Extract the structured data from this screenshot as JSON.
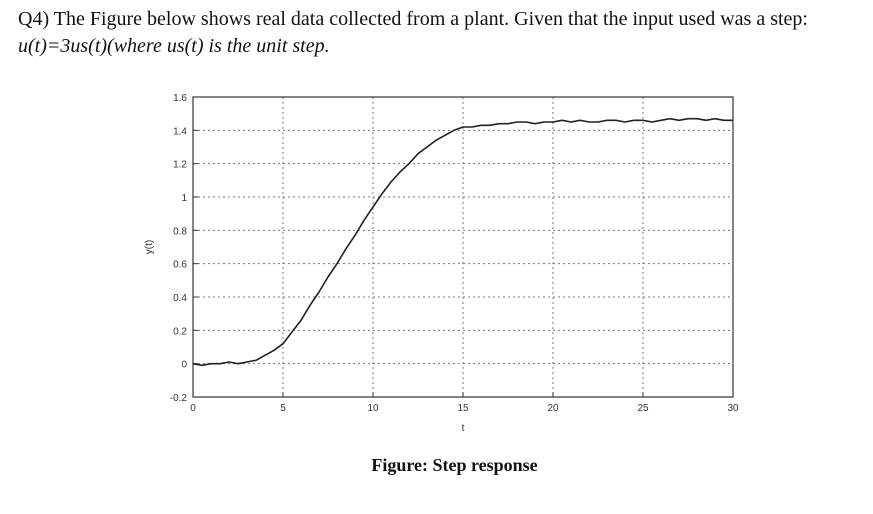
{
  "question": {
    "line1": "Q4) The Figure below shows real data collected from a plant. Given that the input used was a step:",
    "line2": "u(t)=3us(t)(where us(t) is the unit step."
  },
  "caption": "Figure: Step response",
  "chart_data": {
    "type": "line",
    "title": "",
    "xlabel": "t",
    "ylabel": "y(t)",
    "xlim": [
      0,
      30
    ],
    "ylim": [
      -0.2,
      1.6
    ],
    "xticks": [
      0,
      5,
      10,
      15,
      20,
      25,
      30
    ],
    "yticks": [
      -0.2,
      0,
      0.2,
      0.4,
      0.6,
      0.8,
      1,
      1.2,
      1.4,
      1.6
    ],
    "xtick_labels": [
      "0",
      "5",
      "10",
      "15",
      "20",
      "25",
      "30"
    ],
    "ytick_labels": [
      "-0.2",
      "0",
      "0.2",
      "0.4",
      "0.6",
      "0.8",
      "1",
      "1.2",
      "1.4",
      "1.6"
    ],
    "grid": true,
    "series": [
      {
        "x": [
          0,
          0.5,
          1,
          1.5,
          2,
          2.5,
          3,
          3.5,
          4,
          4.5,
          5,
          5.5,
          6,
          6.5,
          7,
          7.5,
          8,
          8.5,
          9,
          9.5,
          10,
          10.5,
          11,
          11.5,
          12,
          12.5,
          13,
          13.5,
          14,
          14.5,
          15,
          15.5,
          16,
          16.5,
          17,
          17.5,
          18,
          18.5,
          19,
          19.5,
          20,
          20.5,
          21,
          21.5,
          22,
          22.5,
          23,
          23.5,
          24,
          24.5,
          25,
          25.5,
          26,
          26.5,
          27,
          27.5,
          28,
          28.5,
          29,
          29.5,
          30
        ],
        "y": [
          0.0,
          -0.01,
          0.0,
          0.0,
          0.01,
          0.0,
          0.01,
          0.02,
          0.05,
          0.08,
          0.12,
          0.19,
          0.26,
          0.35,
          0.43,
          0.52,
          0.6,
          0.69,
          0.77,
          0.86,
          0.94,
          1.02,
          1.09,
          1.15,
          1.2,
          1.26,
          1.3,
          1.34,
          1.37,
          1.4,
          1.42,
          1.42,
          1.43,
          1.43,
          1.44,
          1.44,
          1.45,
          1.45,
          1.44,
          1.45,
          1.45,
          1.46,
          1.45,
          1.46,
          1.45,
          1.45,
          1.46,
          1.46,
          1.45,
          1.46,
          1.46,
          1.45,
          1.46,
          1.47,
          1.46,
          1.47,
          1.47,
          1.46,
          1.47,
          1.46,
          1.46
        ]
      }
    ]
  }
}
